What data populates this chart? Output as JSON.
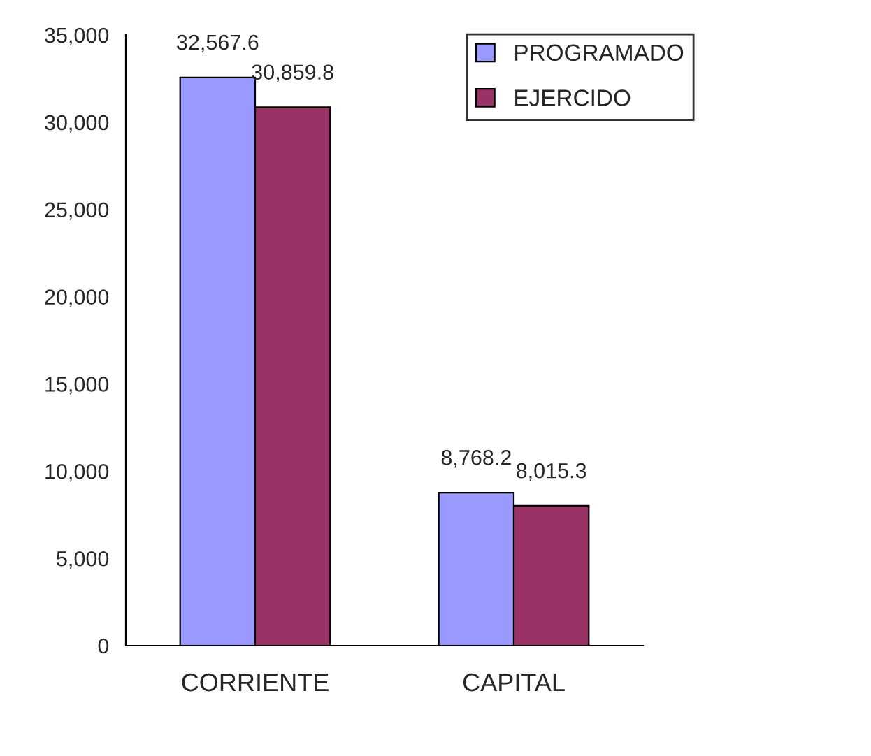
{
  "chart_data": {
    "type": "bar",
    "categories": [
      "CORRIENTE",
      "CAPITAL"
    ],
    "series": [
      {
        "name": "PROGRAMADO",
        "color": "#9999ff",
        "values": [
          32567.6,
          8768.2
        ],
        "value_labels": [
          "32,567.6",
          "8,768.2"
        ]
      },
      {
        "name": "EJERCIDO",
        "color": "#993366",
        "values": [
          30859.8,
          8015.3
        ],
        "value_labels": [
          "30,859.8",
          "8,015.3"
        ]
      }
    ],
    "ylim": [
      0,
      35000
    ],
    "yticks": [
      0,
      {
        "value": 5000,
        "label": "5,000"
      },
      {
        "value": 10000,
        "label": "10,000"
      },
      {
        "value": 15000,
        "label": "15,000"
      },
      {
        "value": 20000,
        "label": "20,000"
      },
      {
        "value": 25000,
        "label": "25,000"
      },
      {
        "value": 30000,
        "label": "30,000"
      },
      {
        "value": 35000,
        "label": "35,000"
      }
    ],
    "legend": "top right",
    "grid": false
  }
}
